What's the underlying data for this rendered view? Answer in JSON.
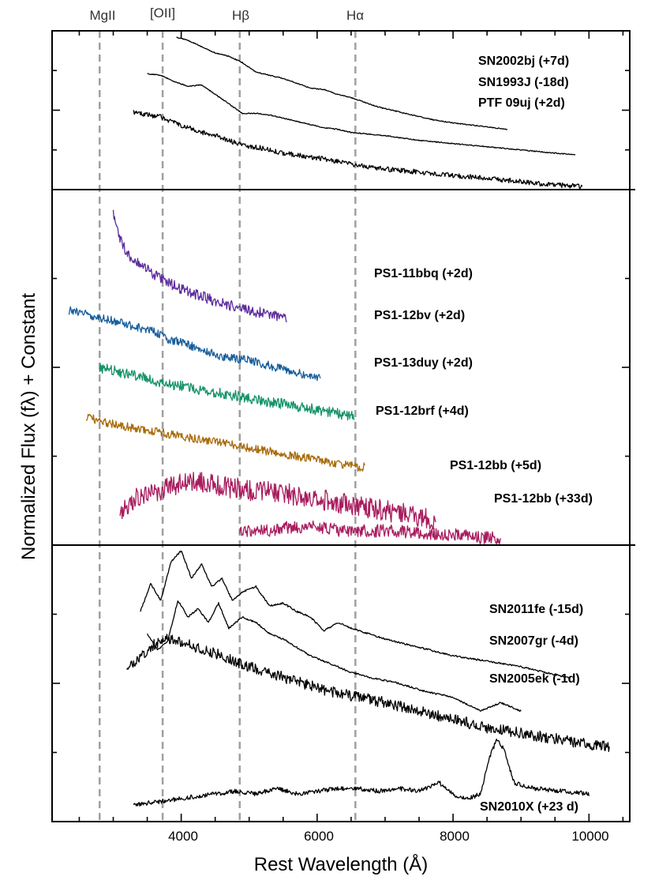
{
  "chart_data": {
    "type": "line",
    "xlabel": "Rest Wavelength (Å)",
    "ylabel": "Normalized Flux (fλ) + Constant",
    "xlim": [
      2100,
      10600
    ],
    "x_ticks": [
      4000,
      6000,
      8000,
      10000
    ],
    "grid": false,
    "colors": {
      "black": "#000000",
      "purple": "#5b2a9c",
      "blue": "#155d9c",
      "green": "#15926a",
      "orange": "#a86a08",
      "magenta": "#a81c5e",
      "dashed": "#a0a0a0"
    },
    "reference_lines": [
      {
        "label": "MgII",
        "x": 2800
      },
      {
        "label": "[OII]",
        "x": 3727
      },
      {
        "label": "Hβ",
        "x": 4861
      },
      {
        "label": "Hα",
        "x": 6563
      }
    ],
    "panels": [
      {
        "name": "top",
        "series": [
          {
            "name": "SN2002bj (+7d)",
            "color": "black",
            "noise": 0.003,
            "x": [
              3930,
              4100,
              4300,
              4500,
              4700,
              4900,
              5100,
              5300,
              5500,
              5700,
              5900,
              6100,
              6300,
              6500,
              6700,
              6900,
              7100,
              7300,
              7500,
              7700,
              8000,
              8400,
              8800
            ],
            "y": [
              0.96,
              0.94,
              0.9,
              0.86,
              0.84,
              0.8,
              0.74,
              0.72,
              0.7,
              0.67,
              0.64,
              0.63,
              0.6,
              0.58,
              0.55,
              0.52,
              0.5,
              0.48,
              0.46,
              0.44,
              0.42,
              0.4,
              0.38
            ]
          },
          {
            "name": "SN1993J (-18d)",
            "color": "black",
            "noise": 0.003,
            "x": [
              3500,
              3700,
              3900,
              4100,
              4300,
              4500,
              4700,
              4900,
              5100,
              5300,
              5500,
              5700,
              5900,
              6100,
              6300,
              6500,
              7000,
              7500,
              8000,
              8500,
              9000,
              9500,
              9800
            ],
            "y": [
              0.73,
              0.72,
              0.68,
              0.65,
              0.66,
              0.6,
              0.54,
              0.48,
              0.48,
              0.47,
              0.45,
              0.43,
              0.41,
              0.39,
              0.38,
              0.36,
              0.34,
              0.31,
              0.29,
              0.27,
              0.25,
              0.23,
              0.22
            ]
          },
          {
            "name": "PTF 09uj (+2d)",
            "color": "black",
            "noise": 0.015,
            "x": [
              3300,
              3500,
              3700,
              3900,
              4100,
              4300,
              4500,
              4700,
              4900,
              5200,
              5500,
              6000,
              6500,
              7000,
              7500,
              8000,
              8500,
              9000,
              9500,
              9900
            ],
            "y": [
              0.49,
              0.47,
              0.46,
              0.42,
              0.39,
              0.36,
              0.34,
              0.31,
              0.28,
              0.26,
              0.23,
              0.2,
              0.16,
              0.13,
              0.11,
              0.09,
              0.07,
              0.05,
              0.03,
              0.02
            ]
          }
        ],
        "labels": [
          "SN2002bj (+7d)",
          "SN1993J (-18d)",
          "PTF 09uj (+2d)"
        ]
      },
      {
        "name": "middle",
        "series": [
          {
            "name": "PS1-11bbq (+2d)",
            "color": "purple",
            "noise": 0.015,
            "x": [
              3000,
              3100,
              3200,
              3400,
              3600,
              3800,
              4000,
              4300,
              4600,
              5000,
              5300,
              5550
            ],
            "y": [
              0.93,
              0.86,
              0.82,
              0.79,
              0.76,
              0.74,
              0.72,
              0.7,
              0.68,
              0.66,
              0.65,
              0.64
            ]
          },
          {
            "name": "PS1-12bv (+2d)",
            "color": "blue",
            "noise": 0.012,
            "x": [
              2350,
              2600,
              2800,
              3000,
              3200,
              3400,
              3600,
              3800,
              4000,
              4300,
              4600,
              5000,
              5400,
              5800,
              6050
            ],
            "y": [
              0.66,
              0.65,
              0.64,
              0.63,
              0.62,
              0.61,
              0.6,
              0.58,
              0.57,
              0.55,
              0.53,
              0.52,
              0.5,
              0.48,
              0.47
            ]
          },
          {
            "name": "PS1-13duy (+2d)",
            "color": "green",
            "noise": 0.015,
            "x": [
              2800,
              3000,
              3300,
              3600,
              3900,
              4200,
              4500,
              4800,
              5100,
              5400,
              5700,
              6000,
              6300,
              6550
            ],
            "y": [
              0.5,
              0.49,
              0.48,
              0.46,
              0.45,
              0.44,
              0.43,
              0.42,
              0.41,
              0.4,
              0.39,
              0.38,
              0.37,
              0.36
            ]
          },
          {
            "name": "PS1-12brf (+4d)",
            "color": "orange",
            "noise": 0.012,
            "x": [
              2600,
              2800,
              3000,
              3300,
              3600,
              3900,
              4200,
              4500,
              4800,
              5100,
              5400,
              5700,
              6000,
              6300,
              6600,
              6700
            ],
            "y": [
              0.36,
              0.35,
              0.34,
              0.33,
              0.32,
              0.31,
              0.3,
              0.29,
              0.28,
              0.27,
              0.26,
              0.25,
              0.24,
              0.23,
              0.22,
              0.22
            ]
          },
          {
            "name": "PS1-12bb (+5d)",
            "color": "magenta",
            "noise": 0.03,
            "x": [
              3100,
              3300,
              3600,
              3900,
              4200,
              4500,
              4800,
              5100,
              5400,
              5700,
              6000,
              6300,
              6600,
              6900,
              7200,
              7500,
              7750
            ],
            "y": [
              0.1,
              0.13,
              0.15,
              0.17,
              0.18,
              0.17,
              0.16,
              0.15,
              0.15,
              0.14,
              0.13,
              0.12,
              0.11,
              0.1,
              0.09,
              0.08,
              0.07
            ]
          },
          {
            "name": "PS1-12bb (+33d)",
            "color": "magenta",
            "noise": 0.018,
            "x": [
              4860,
              5200,
              5600,
              6000,
              6400,
              6800,
              7200,
              7600,
              8000,
              8400,
              8700
            ],
            "y": [
              0.04,
              0.04,
              0.05,
              0.05,
              0.04,
              0.04,
              0.04,
              0.03,
              0.03,
              0.02,
              0.02
            ]
          }
        ],
        "labels": [
          "PS1-11bbq (+2d)",
          "PS1-12bv (+2d)",
          "PS1-13duy (+2d)",
          "PS1-12brf (+4d)",
          "PS1-12bb (+5d)",
          "PS1-12bb (+33d)"
        ]
      },
      {
        "name": "bottom",
        "series": [
          {
            "name": "SN2011fe (-15d)",
            "color": "black",
            "noise": 0.003,
            "x": [
              3400,
              3550,
              3700,
              3850,
              4000,
              4150,
              4300,
              4450,
              4600,
              4750,
              4900,
              5100,
              5300,
              5500,
              5700,
              5900,
              6100,
              6300,
              6500,
              7000,
              7500,
              8000,
              8500,
              9000,
              9700
            ],
            "y": [
              0.76,
              0.86,
              0.8,
              0.94,
              0.98,
              0.88,
              0.93,
              0.85,
              0.88,
              0.8,
              0.83,
              0.85,
              0.78,
              0.79,
              0.76,
              0.74,
              0.69,
              0.72,
              0.7,
              0.66,
              0.63,
              0.6,
              0.58,
              0.56,
              0.52
            ]
          },
          {
            "name": "SN2007gr (-4d)",
            "color": "black",
            "noise": 0.003,
            "x": [
              3500,
              3650,
              3800,
              3950,
              4100,
              4250,
              4400,
              4550,
              4700,
              4900,
              5100,
              5300,
              5500,
              5700,
              5900,
              6100,
              6300,
              6500,
              6800,
              7200,
              7600,
              8000,
              8400,
              8700,
              9000
            ],
            "y": [
              0.68,
              0.62,
              0.65,
              0.8,
              0.74,
              0.77,
              0.72,
              0.79,
              0.7,
              0.74,
              0.72,
              0.68,
              0.66,
              0.63,
              0.6,
              0.58,
              0.56,
              0.54,
              0.52,
              0.5,
              0.47,
              0.45,
              0.4,
              0.43,
              0.4
            ]
          },
          {
            "name": "SN2005ek (-1d)",
            "color": "black",
            "noise": 0.02,
            "x": [
              3200,
              3400,
              3600,
              3800,
              4000,
              4300,
              4600,
              5000,
              5400,
              5800,
              6200,
              6600,
              7000,
              7500,
              8000,
              8500,
              9000,
              9500,
              10000,
              10300
            ],
            "y": [
              0.55,
              0.6,
              0.64,
              0.66,
              0.65,
              0.62,
              0.6,
              0.56,
              0.53,
              0.5,
              0.47,
              0.45,
              0.43,
              0.4,
              0.37,
              0.34,
              0.32,
              0.3,
              0.28,
              0.27
            ]
          },
          {
            "name": "SN2010X (+23 d)",
            "color": "black",
            "noise": 0.008,
            "x": [
              3300,
              3600,
              3900,
              4200,
              4500,
              4800,
              5100,
              5400,
              5700,
              6000,
              6300,
              6600,
              6900,
              7200,
              7500,
              7800,
              8000,
              8200,
              8400,
              8550,
              8650,
              8750,
              8900,
              9200,
              9600,
              10000
            ],
            "y": [
              0.06,
              0.07,
              0.08,
              0.09,
              0.1,
              0.11,
              0.1,
              0.12,
              0.1,
              0.11,
              0.12,
              0.12,
              0.11,
              0.12,
              0.11,
              0.14,
              0.1,
              0.08,
              0.1,
              0.24,
              0.3,
              0.26,
              0.14,
              0.12,
              0.11,
              0.1
            ]
          }
        ],
        "labels": [
          "SN2011fe (-15d)",
          "SN2007gr (-4d)",
          "SN2005ek (-1d)",
          "SN2010X (+23 d)"
        ]
      }
    ]
  }
}
